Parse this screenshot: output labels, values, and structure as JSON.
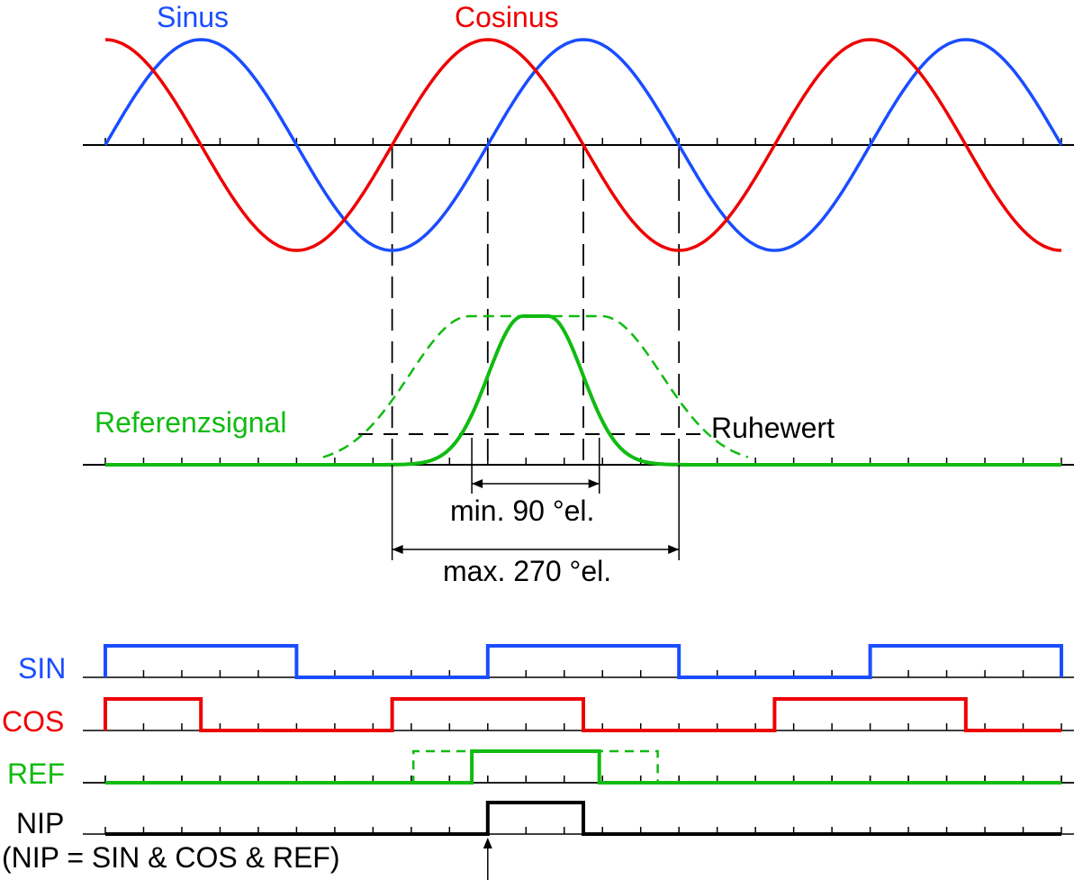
{
  "labels": {
    "sinus": "Sinus",
    "cosinus": "Cosinus",
    "referenzsignal": "Referenzsignal",
    "ruhewert": "Ruhewert",
    "min_width": "min. 90 °el.",
    "max_width": "max. 270 °el.",
    "sin": "SIN",
    "cos": "COS",
    "ref": "REF",
    "nip": "NIP",
    "nip_formula": "(NIP = SIN & COS & REF)"
  },
  "colors": {
    "sin": "#1a4dff",
    "cos": "#ee0000",
    "ref": "#11bb11",
    "nip": "#000000",
    "axis": "#000000"
  },
  "signals": {
    "period_deg": 360,
    "total_deg": 900,
    "tick_step_deg": 36,
    "sin_high": [
      [
        0,
        180
      ],
      [
        360,
        540
      ],
      [
        720,
        900
      ]
    ],
    "cos_high": [
      [
        0,
        90
      ],
      [
        270,
        450
      ],
      [
        630,
        810
      ]
    ],
    "ref_high_min": [
      [
        345,
        465
      ]
    ],
    "ref_high_max": [
      [
        290,
        520
      ]
    ],
    "nip_high": [
      [
        360,
        450
      ]
    ],
    "ref_window_min_deg": [
      345,
      465
    ],
    "ref_window_max_deg": [
      270,
      540
    ],
    "marker_lines_deg": [
      270,
      360,
      450,
      540
    ]
  }
}
